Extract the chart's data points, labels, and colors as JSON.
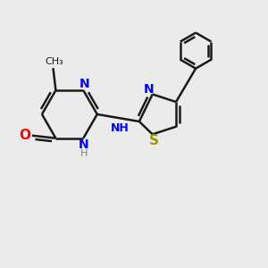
{
  "background_color": "#ebebeb",
  "bond_color": "#1a1a1a",
  "bond_width": 1.8,
  "figsize": [
    3.0,
    3.0
  ],
  "dpi": 100,
  "atom_colors": {
    "N": "#0000ff",
    "O": "#ff0000",
    "S": "#999900",
    "C": "#1a1a1a",
    "H": "#808080"
  }
}
